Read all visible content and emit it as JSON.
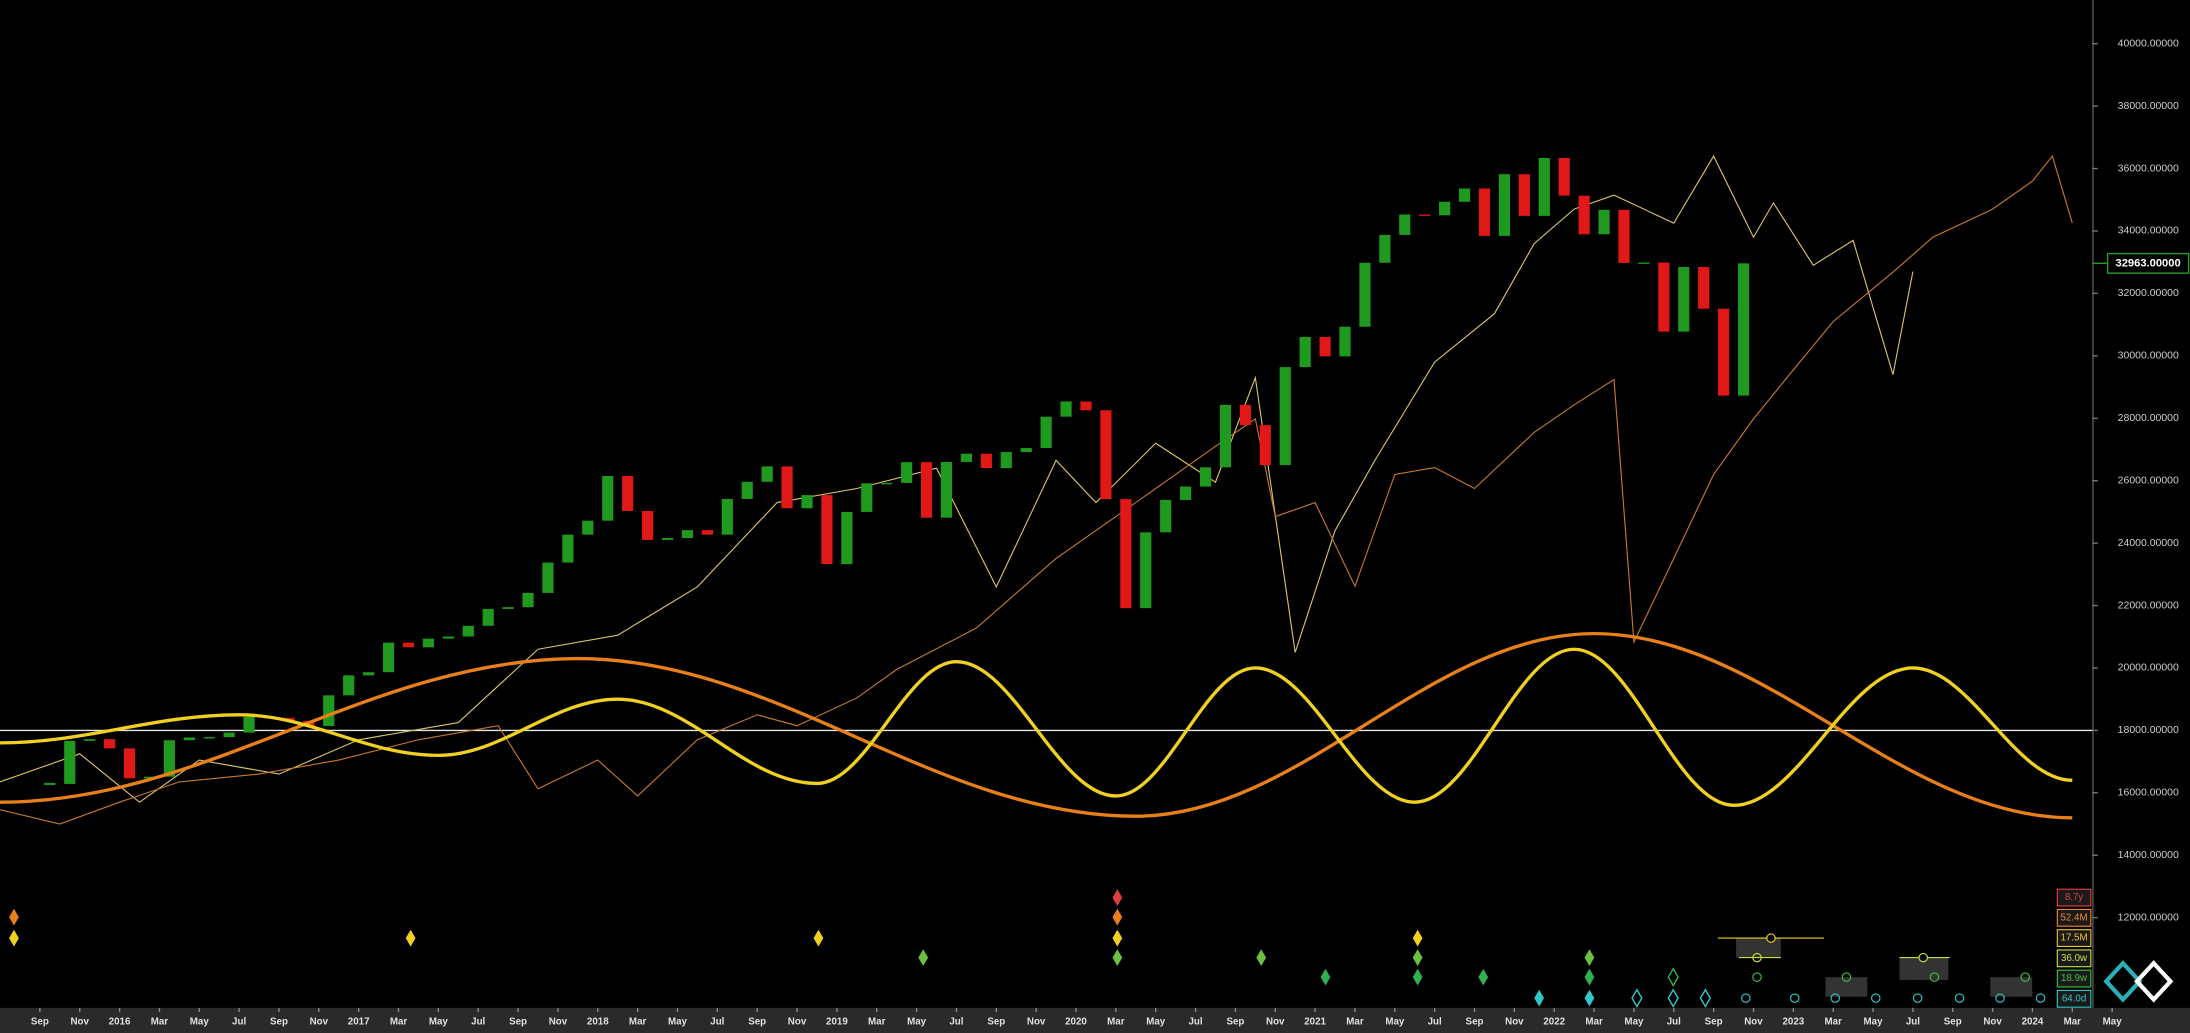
{
  "chart_data": {
    "type": "candlestick",
    "xlim": [
      "2015-07",
      "2024-04"
    ],
    "ylim": [
      9200,
      41400
    ],
    "xticks": [
      {
        "value": "2015-09",
        "label": "Sep"
      },
      {
        "value": "2015-11",
        "label": "Nov"
      },
      {
        "value": "2016-01",
        "label": "2016"
      },
      {
        "value": "2016-03",
        "label": "Mar"
      },
      {
        "value": "2016-05",
        "label": "May"
      },
      {
        "value": "2016-07",
        "label": "Jul"
      },
      {
        "value": "2016-09",
        "label": "Sep"
      },
      {
        "value": "2016-11",
        "label": "Nov"
      },
      {
        "value": "2017-01",
        "label": "2017"
      },
      {
        "value": "2017-03",
        "label": "Mar"
      },
      {
        "value": "2017-05",
        "label": "May"
      },
      {
        "value": "2017-07",
        "label": "Jul"
      },
      {
        "value": "2017-09",
        "label": "Sep"
      },
      {
        "value": "2017-11",
        "label": "Nov"
      },
      {
        "value": "2018-01",
        "label": "2018"
      },
      {
        "value": "2018-03",
        "label": "Mar"
      },
      {
        "value": "2018-05",
        "label": "May"
      },
      {
        "value": "2018-07",
        "label": "Jul"
      },
      {
        "value": "2018-09",
        "label": "Sep"
      },
      {
        "value": "2018-11",
        "label": "Nov"
      },
      {
        "value": "2019-01",
        "label": "2019"
      },
      {
        "value": "2019-03",
        "label": "Mar"
      },
      {
        "value": "2019-05",
        "label": "May"
      },
      {
        "value": "2019-07",
        "label": "Jul"
      },
      {
        "value": "2019-09",
        "label": "Sep"
      },
      {
        "value": "2019-11",
        "label": "Nov"
      },
      {
        "value": "2020-01",
        "label": "2020"
      },
      {
        "value": "2020-03",
        "label": "Mar"
      },
      {
        "value": "2020-05",
        "label": "May"
      },
      {
        "value": "2020-07",
        "label": "Jul"
      },
      {
        "value": "2020-09",
        "label": "Sep"
      },
      {
        "value": "2020-11",
        "label": "Nov"
      },
      {
        "value": "2021-01",
        "label": "2021"
      },
      {
        "value": "2021-03",
        "label": "Mar"
      },
      {
        "value": "2021-05",
        "label": "May"
      },
      {
        "value": "2021-07",
        "label": "Jul"
      },
      {
        "value": "2021-09",
        "label": "Sep"
      },
      {
        "value": "2021-11",
        "label": "Nov"
      },
      {
        "value": "2022-01",
        "label": "2022"
      },
      {
        "value": "2022-03",
        "label": "Mar"
      },
      {
        "value": "2022-05",
        "label": "May"
      },
      {
        "value": "2022-07",
        "label": "Jul"
      },
      {
        "value": "2022-09",
        "label": "Sep"
      },
      {
        "value": "2022-11",
        "label": "Nov"
      },
      {
        "value": "2023-01",
        "label": "2023"
      },
      {
        "value": "2023-03",
        "label": "Mar"
      },
      {
        "value": "2023-05",
        "label": "May"
      },
      {
        "value": "2023-07",
        "label": "Jul"
      },
      {
        "value": "2023-09",
        "label": "Sep"
      },
      {
        "value": "2023-11",
        "label": "Nov"
      },
      {
        "value": "2024-01",
        "label": "2024"
      },
      {
        "value": "2024-03",
        "label": "Mar"
      },
      {
        "value": "2024-05",
        "label": "May"
      }
    ],
    "yticks": [
      {
        "value": 12000,
        "label": "12000.00000"
      },
      {
        "value": 14000,
        "label": "14000.00000"
      },
      {
        "value": 16000,
        "label": "16000.00000"
      },
      {
        "value": 18000,
        "label": "18000.00000"
      },
      {
        "value": 20000,
        "label": "20000.00000"
      },
      {
        "value": 22000,
        "label": "22000.00000"
      },
      {
        "value": 24000,
        "label": "24000.00000"
      },
      {
        "value": 26000,
        "label": "26000.00000"
      },
      {
        "value": 28000,
        "label": "28000.00000"
      },
      {
        "value": 30000,
        "label": "30000.00000"
      },
      {
        "value": 32000,
        "label": "32000.00000"
      },
      {
        "value": 34000,
        "label": "34000.00000"
      },
      {
        "value": 36000,
        "label": "36000.00000"
      },
      {
        "value": 38000,
        "label": "38000.00000"
      },
      {
        "value": 40000,
        "label": "40000.00000"
      }
    ],
    "up_color": "#1f9a1f",
    "down_color": "#e01818",
    "x": [
      "2015-09",
      "2015-10",
      "2015-11",
      "2015-12",
      "2016-01",
      "2016-02",
      "2016-03",
      "2016-04",
      "2016-05",
      "2016-06",
      "2016-07",
      "2016-08",
      "2016-09",
      "2016-10",
      "2016-11",
      "2016-12",
      "2017-01",
      "2017-02",
      "2017-03",
      "2017-04",
      "2017-05",
      "2017-06",
      "2017-07",
      "2017-08",
      "2017-09",
      "2017-10",
      "2017-11",
      "2017-12",
      "2018-01",
      "2018-02",
      "2018-03",
      "2018-04",
      "2018-05",
      "2018-06",
      "2018-07",
      "2018-08",
      "2018-09",
      "2018-10",
      "2018-11",
      "2018-12",
      "2019-01",
      "2019-02",
      "2019-03",
      "2019-04",
      "2019-05",
      "2019-06",
      "2019-07",
      "2019-08",
      "2019-09",
      "2019-10",
      "2019-11",
      "2019-12",
      "2020-01",
      "2020-02",
      "2020-03",
      "2020-04",
      "2020-05",
      "2020-06",
      "2020-07",
      "2020-08",
      "2020-09",
      "2020-10",
      "2020-11",
      "2020-12",
      "2021-01",
      "2021-02",
      "2021-03",
      "2021-04",
      "2021-05",
      "2021-06",
      "2021-07",
      "2021-08",
      "2021-09",
      "2021-10",
      "2021-11",
      "2021-12",
      "2022-01",
      "2022-02",
      "2022-03",
      "2022-04",
      "2022-05",
      "2022-06",
      "2022-07",
      "2022-08",
      "2022-09",
      "2022-10"
    ],
    "close": [
      16285,
      17664,
      17720,
      17425,
      16466,
      16517,
      17685,
      17774,
      17787,
      17930,
      18432,
      18401,
      18308,
      18142,
      19124,
      19763,
      19864,
      20812,
      20663,
      20941,
      21009,
      21350,
      21891,
      21948,
      22405,
      23377,
      24272,
      24719,
      26149,
      25029,
      24103,
      24163,
      24416,
      24271,
      25415,
      25965,
      26458,
      25116,
      25538,
      23327,
      24999,
      25916,
      25929,
      26593,
      24815,
      26600,
      26864,
      26403,
      26917,
      27046,
      28051,
      28538,
      28256,
      25409,
      21917,
      24346,
      25383,
      25813,
      26428,
      28430,
      27782,
      26502,
      29639,
      30606,
      29983,
      30932,
      32982,
      33875,
      34529,
      34503,
      34935,
      35361,
      33844,
      35820,
      34484,
      36338,
      35132,
      33893,
      34678,
      32977,
      32990,
      30775,
      32845,
      31510,
      28726,
      32963
    ],
    "last_price": {
      "value": 32963,
      "label": "32963.00000"
    },
    "reference_line": 18000,
    "lines": [
      {
        "color": "#d9c466",
        "width": 0.8,
        "smooth": false,
        "x": [
          "2015-07",
          "2015-11",
          "2016-02",
          "2016-05",
          "2016-09",
          "2017-01",
          "2017-06",
          "2017-10",
          "2018-02",
          "2018-06",
          "2018-10",
          "2019-02",
          "2019-06",
          "2019-09",
          "2019-12",
          "2020-02",
          "2020-05",
          "2020-08",
          "2020-10",
          "2020-12",
          "2021-02",
          "2021-04",
          "2021-07",
          "2021-10",
          "2021-12",
          "2022-02",
          "2022-04",
          "2022-07",
          "2022-09",
          "2022-11",
          "2022-12",
          "2023-02",
          "2023-04",
          "2023-06",
          "2023-07"
        ],
        "values": [
          16350,
          17250,
          15700,
          17050,
          16600,
          17700,
          18250,
          20600,
          21050,
          22600,
          25300,
          25750,
          26400,
          22600,
          26650,
          25300,
          27200,
          25950,
          29300,
          20500,
          24400,
          26650,
          29800,
          31350,
          33600,
          34700,
          35150,
          34250,
          36400,
          33800,
          34900,
          32900,
          33700,
          29400,
          32700
        ]
      },
      {
        "color": "#c8782e",
        "width": 0.8,
        "smooth": false,
        "x": [
          "2015-07",
          "2015-10",
          "2016-01",
          "2016-04",
          "2016-08",
          "2016-12",
          "2017-04",
          "2017-08",
          "2017-10",
          "2018-01",
          "2018-03",
          "2018-06",
          "2018-09",
          "2018-11",
          "2019-02",
          "2019-04",
          "2019-08",
          "2019-12",
          "2020-03",
          "2020-06",
          "2020-08",
          "2020-10",
          "2020-11",
          "2021-01",
          "2021-03",
          "2021-05",
          "2021-07",
          "2021-09",
          "2021-12",
          "2022-02",
          "2022-04",
          "2022-05",
          "2022-07",
          "2022-09",
          "2022-11",
          "2023-01",
          "2023-03",
          "2023-06",
          "2023-08",
          "2023-11",
          "2024-01",
          "2024-02",
          "2024-03"
        ],
        "values": [
          15460,
          15000,
          15700,
          16350,
          16600,
          17050,
          17700,
          18150,
          16130,
          17050,
          15900,
          17700,
          18500,
          18150,
          19040,
          19950,
          21280,
          23510,
          24850,
          26200,
          27100,
          27980,
          24850,
          25300,
          22620,
          26200,
          26420,
          25750,
          27550,
          28430,
          29240,
          20830,
          23510,
          26200,
          27980,
          29550,
          31100,
          32680,
          33800,
          34700,
          35600,
          36400,
          34250
        ]
      },
      {
        "color": "#e8801a",
        "width": 2.4,
        "smooth": true,
        "x": [
          "2015-07",
          "2017-12",
          "2020-04",
          "2022-03",
          "2024-03"
        ],
        "values": [
          15700,
          20300,
          15250,
          21100,
          15200
        ]
      },
      {
        "color": "#f0d020",
        "width": 2.4,
        "smooth": true,
        "x": [
          "2015-07",
          "2016-07",
          "2017-05",
          "2018-02",
          "2018-12",
          "2019-07",
          "2020-03",
          "2020-10",
          "2021-06",
          "2022-02",
          "2022-10",
          "2023-07",
          "2024-03"
        ],
        "values": [
          17600,
          18500,
          17200,
          19000,
          16300,
          20200,
          15900,
          20000,
          15700,
          20600,
          15600,
          20000,
          16400
        ]
      }
    ],
    "cycles": [
      {
        "label": "8.7y",
        "color": "#e04040"
      },
      {
        "label": "52.4M",
        "color": "#f08a2a"
      },
      {
        "label": "17.5M",
        "color": "#f2c230"
      },
      {
        "label": "36.0w",
        "color": "#c8e040"
      },
      {
        "label": "18.9w",
        "color": "#40c040"
      },
      {
        "label": "64.0d",
        "color": "#30c8c8"
      }
    ]
  }
}
